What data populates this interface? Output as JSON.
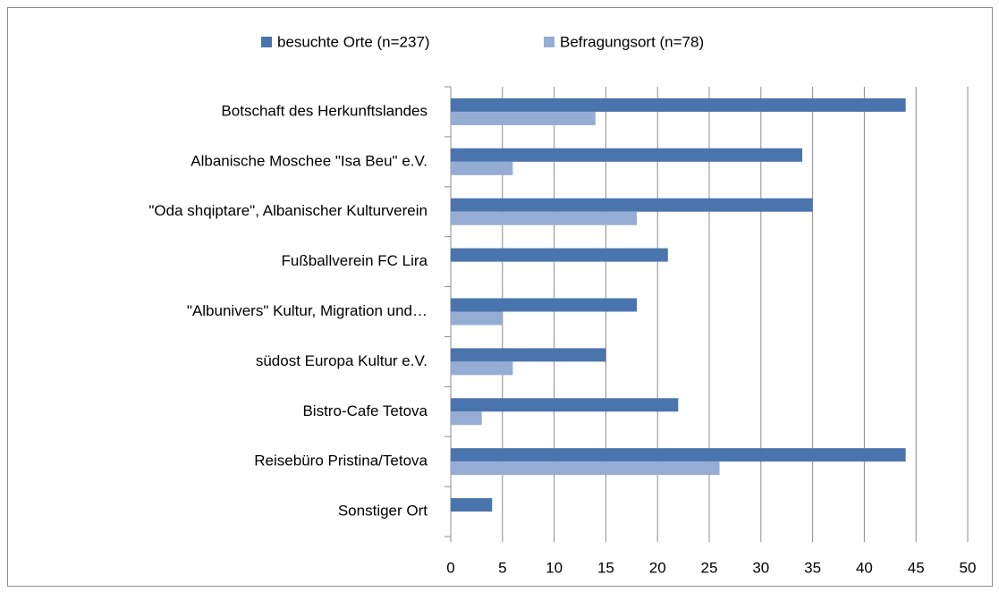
{
  "chart_data": {
    "type": "hbar",
    "categories": [
      "Botschaft des Herkunftslandes",
      "Albanische Moschee \"Isa Beu\" e.V.",
      "\"Oda shqiptare\", Albanischer Kulturverein",
      "Fußballverein FC Lira",
      "\"Albunivers\" Kultur, Migration und…",
      "südost Europa Kultur e.V.",
      "Bistro-Cafe Tetova",
      "Reisebüro Pristina/Tetova",
      "Sonstiger Ort"
    ],
    "series": [
      {
        "name": "besuchte Orte (n=237)",
        "color": "#4a74ad",
        "values": [
          44,
          34,
          35,
          21,
          18,
          15,
          22,
          44,
          4
        ]
      },
      {
        "name": "Befragungsort (n=78)",
        "color": "#95add5",
        "values": [
          14,
          6,
          18,
          0,
          5,
          6,
          3,
          26,
          0
        ]
      }
    ],
    "xlim": [
      0,
      50
    ],
    "xticks": [
      0,
      5,
      10,
      15,
      20,
      25,
      30,
      35,
      40,
      45,
      50
    ],
    "grid": true,
    "legend": "top"
  }
}
